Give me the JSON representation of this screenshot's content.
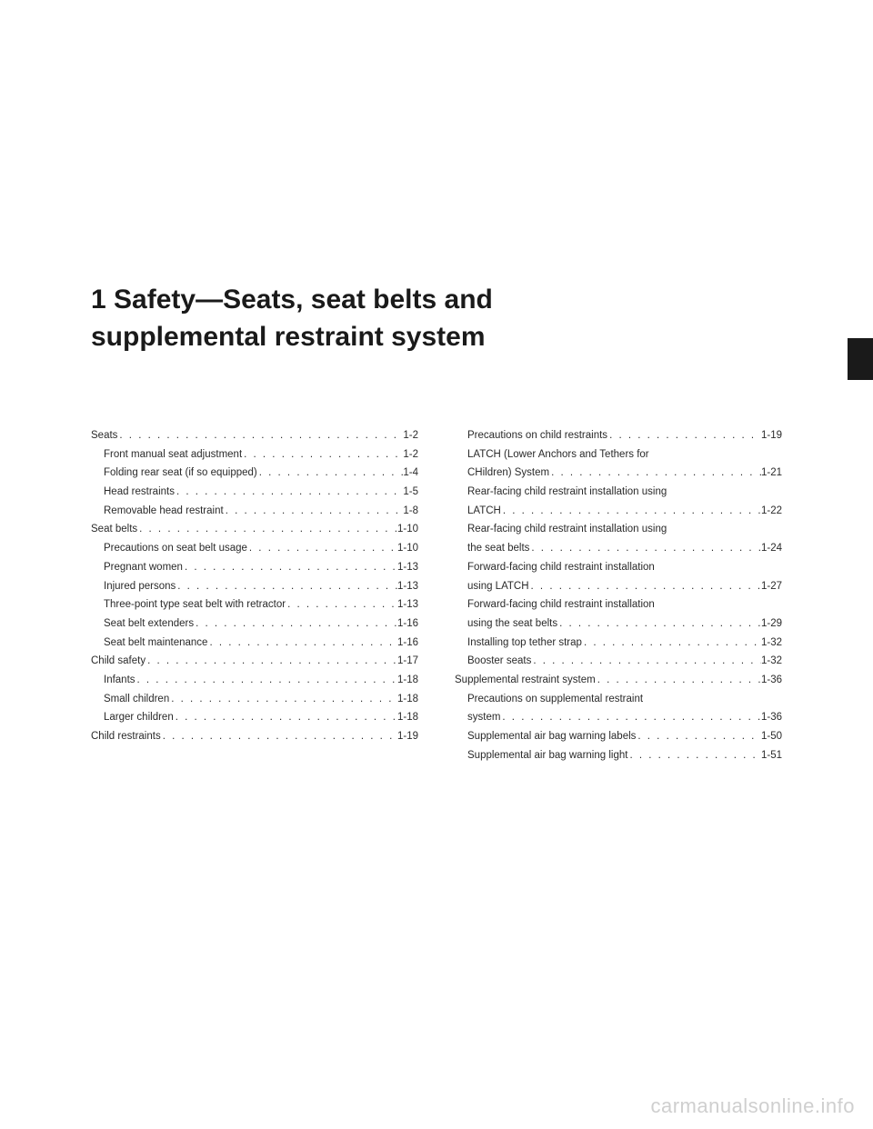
{
  "title_line1": "1 Safety—Seats, seat belts and",
  "title_line2": "supplemental restraint system",
  "watermark": "carmanualsonline.info",
  "col1": [
    {
      "label": "Seats",
      "page": "1-2",
      "sub": false
    },
    {
      "label": "Front manual seat adjustment",
      "page": "1-2",
      "sub": true
    },
    {
      "label": "Folding rear seat (if so equipped)",
      "page": "1-4",
      "sub": true
    },
    {
      "label": "Head restraints",
      "page": "1-5",
      "sub": true
    },
    {
      "label": "Removable head restraint",
      "page": "1-8",
      "sub": true
    },
    {
      "label": "Seat belts",
      "page": "1-10",
      "sub": false
    },
    {
      "label": "Precautions on seat belt usage",
      "page": "1-10",
      "sub": true
    },
    {
      "label": "Pregnant women",
      "page": "1-13",
      "sub": true
    },
    {
      "label": "Injured persons",
      "page": "1-13",
      "sub": true
    },
    {
      "label": "Three-point type seat belt with retractor",
      "page": "1-13",
      "sub": true
    },
    {
      "label": "Seat belt extenders",
      "page": "1-16",
      "sub": true
    },
    {
      "label": "Seat belt maintenance",
      "page": "1-16",
      "sub": true
    },
    {
      "label": "Child safety",
      "page": "1-17",
      "sub": false
    },
    {
      "label": "Infants",
      "page": "1-18",
      "sub": true
    },
    {
      "label": "Small children",
      "page": "1-18",
      "sub": true
    },
    {
      "label": "Larger children",
      "page": "1-18",
      "sub": true
    },
    {
      "label": "Child restraints",
      "page": "1-19",
      "sub": false
    }
  ],
  "col2": [
    {
      "label": "Precautions on child restraints",
      "page": "1-19",
      "sub": true
    },
    {
      "label": "LATCH (Lower Anchors and Tethers for",
      "page": "",
      "sub": true,
      "nowrap": true
    },
    {
      "label": "CHildren) System",
      "page": "1-21",
      "sub": true
    },
    {
      "label": "Rear-facing child restraint installation using",
      "page": "",
      "sub": true,
      "nowrap": true
    },
    {
      "label": "LATCH",
      "page": "1-22",
      "sub": true
    },
    {
      "label": "Rear-facing child restraint installation using",
      "page": "",
      "sub": true,
      "nowrap": true
    },
    {
      "label": "the seat belts",
      "page": "1-24",
      "sub": true
    },
    {
      "label": "Forward-facing child restraint installation",
      "page": "",
      "sub": true,
      "nowrap": true
    },
    {
      "label": "using LATCH",
      "page": "1-27",
      "sub": true
    },
    {
      "label": "Forward-facing child restraint installation",
      "page": "",
      "sub": true,
      "nowrap": true
    },
    {
      "label": "using the seat belts",
      "page": "1-29",
      "sub": true
    },
    {
      "label": "Installing top tether strap",
      "page": "1-32",
      "sub": true
    },
    {
      "label": "Booster seats",
      "page": "1-32",
      "sub": true
    },
    {
      "label": "Supplemental restraint system",
      "page": "1-36",
      "sub": false
    },
    {
      "label": "Precautions on supplemental restraint",
      "page": "",
      "sub": true,
      "nowrap": true
    },
    {
      "label": "system",
      "page": "1-36",
      "sub": true
    },
    {
      "label": "Supplemental air bag warning labels",
      "page": "1-50",
      "sub": true
    },
    {
      "label": "Supplemental air bag warning light",
      "page": "1-51",
      "sub": true
    }
  ]
}
